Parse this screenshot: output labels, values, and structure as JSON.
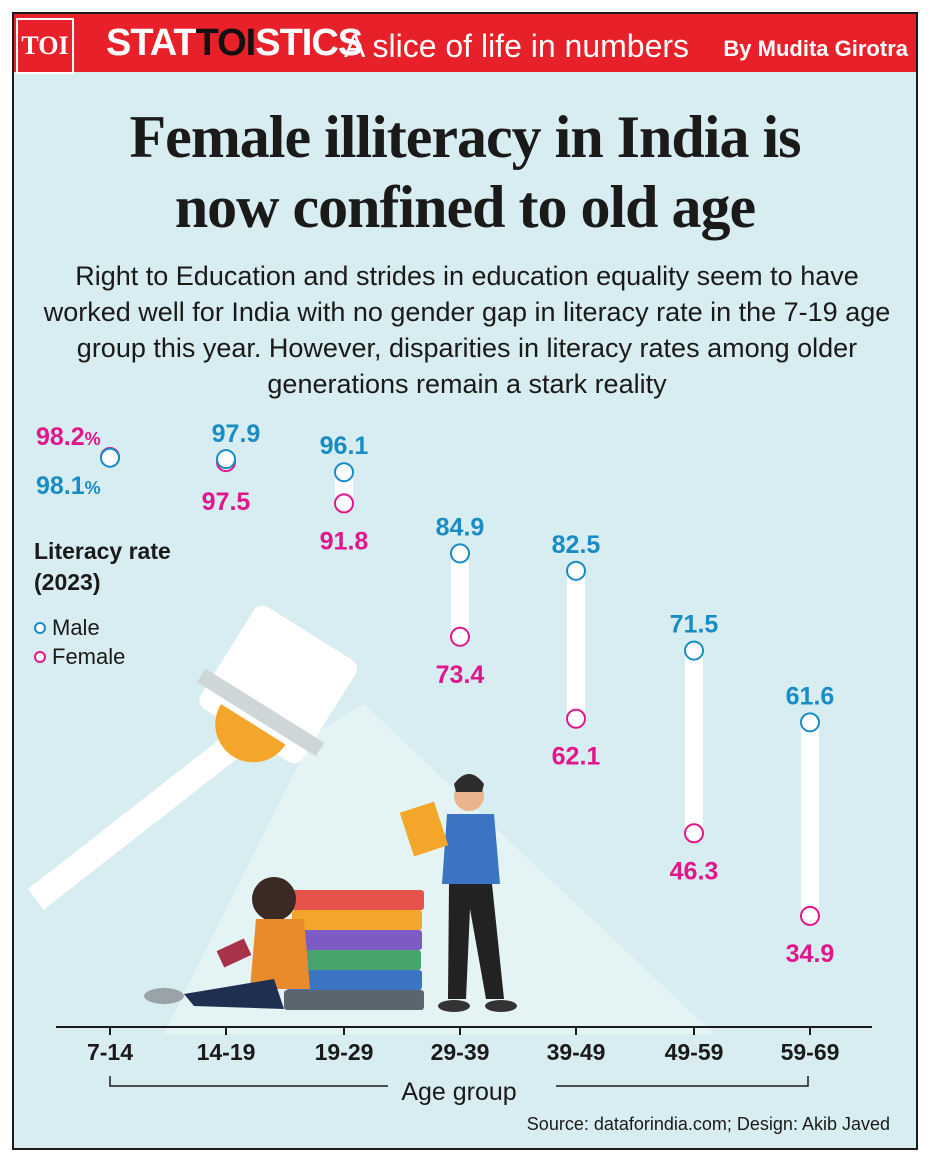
{
  "header": {
    "logo": "TOI",
    "brand_pre": "STAT",
    "brand_mid": "TOI",
    "brand_post": "STICS",
    "tagline": "A slice of life in numbers",
    "byline": "By Mudita Girotra"
  },
  "title_lines": [
    "Female illiteracy in India is",
    "now confined to old age"
  ],
  "subtitle": "Right to Education and strides in education equality seem to have worked well for India with no gender gap in literacy rate in the 7-19 age group this year. However, disparities in literacy rates among older generations remain a stark reality",
  "legend": {
    "title_line1": "Literacy rate",
    "title_line2": "(2023)",
    "male": "Male",
    "female": "Female"
  },
  "source": "Source: dataforindia.com; Design: Akib Javed",
  "colors": {
    "male": "#1a8cc4",
    "female": "#e0168a",
    "background": "#d7edf1",
    "banner": "#e8202a"
  },
  "chart_data": {
    "type": "dumbbell",
    "title": "Female illiteracy in India is now confined to old age",
    "xlabel": "Age group",
    "ylabel": "Literacy rate (2023)",
    "categories": [
      "7-14",
      "14-19",
      "19-29",
      "29-39",
      "39-49",
      "49-59",
      "59-69"
    ],
    "series": [
      {
        "name": "Male",
        "values": [
          98.1,
          97.9,
          96.1,
          84.9,
          82.5,
          71.5,
          61.6
        ]
      },
      {
        "name": "Female",
        "values": [
          98.2,
          97.5,
          91.8,
          73.4,
          62.1,
          46.3,
          34.9
        ]
      }
    ],
    "male_labels": [
      "98.1",
      "97.9",
      "96.1",
      "84.9",
      "82.5",
      "71.5",
      "61.6"
    ],
    "female_labels": [
      "98.2",
      "97.5",
      "91.8",
      "73.4",
      "62.1",
      "46.3",
      "34.9"
    ],
    "percent_suffix": "%",
    "ylim": [
      34.9,
      98.2
    ],
    "grid": false
  }
}
